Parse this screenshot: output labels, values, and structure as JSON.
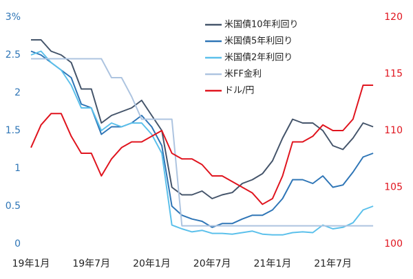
{
  "chart_data": {
    "type": "line",
    "x": [
      0,
      1,
      2,
      3,
      4,
      5,
      6,
      7,
      8,
      9,
      10,
      11,
      12,
      13,
      14,
      15,
      16,
      17,
      18,
      19,
      20,
      21,
      22,
      23,
      24,
      25,
      26,
      27,
      28,
      29,
      30,
      31,
      32,
      33,
      34
    ],
    "xlim": [
      0,
      34.2
    ],
    "xticks": [
      {
        "value": 0,
        "label": "19年1月"
      },
      {
        "value": 6,
        "label": "19年7月"
      },
      {
        "value": 12,
        "label": "20年1月"
      },
      {
        "value": 18,
        "label": "20年7月"
      },
      {
        "value": 24,
        "label": "21年1月"
      },
      {
        "value": 30,
        "label": "21年7月"
      }
    ],
    "ylim": [
      0,
      3
    ],
    "yticks": [
      0,
      0.5,
      1,
      1.5,
      2,
      2.5,
      {
        "value": 3,
        "label": "3%"
      }
    ],
    "y2lim": [
      100,
      120
    ],
    "y2ticks": [
      100,
      105,
      110,
      115,
      120
    ],
    "y_color": "#2e75b6",
    "y2_color": "#e0141e",
    "series": [
      {
        "name": "米国債10年利回り",
        "color": "#44546a",
        "values": [
          2.7,
          2.7,
          2.55,
          2.5,
          2.4,
          2.05,
          2.05,
          1.6,
          1.7,
          1.75,
          1.8,
          1.9,
          1.7,
          1.5,
          0.75,
          0.65,
          0.65,
          0.7,
          0.6,
          0.65,
          0.68,
          0.8,
          0.85,
          0.93,
          1.1,
          1.4,
          1.65,
          1.6,
          1.6,
          1.5,
          1.3,
          1.25,
          1.4,
          1.6,
          1.55
        ]
      },
      {
        "name": "米国債5年利回り",
        "color": "#2e75b6",
        "values": [
          2.55,
          2.5,
          2.4,
          2.3,
          2.2,
          1.85,
          1.8,
          1.45,
          1.55,
          1.55,
          1.6,
          1.7,
          1.55,
          1.3,
          0.5,
          0.38,
          0.33,
          0.3,
          0.22,
          0.27,
          0.27,
          0.33,
          0.38,
          0.38,
          0.45,
          0.6,
          0.85,
          0.85,
          0.8,
          0.9,
          0.75,
          0.78,
          0.95,
          1.15,
          1.2
        ]
      },
      {
        "name": "米国債2年利回り",
        "color": "#5bc0eb",
        "values": [
          2.5,
          2.55,
          2.4,
          2.3,
          2.1,
          1.8,
          1.8,
          1.5,
          1.6,
          1.55,
          1.6,
          1.6,
          1.45,
          1.2,
          0.25,
          0.2,
          0.16,
          0.18,
          0.14,
          0.14,
          0.13,
          0.15,
          0.17,
          0.13,
          0.12,
          0.12,
          0.15,
          0.16,
          0.15,
          0.25,
          0.2,
          0.22,
          0.28,
          0.45,
          0.5
        ]
      },
      {
        "name": "米FF金利",
        "color": "#adc4e0",
        "values": [
          2.45,
          2.45,
          2.45,
          2.45,
          2.45,
          2.45,
          2.45,
          2.45,
          2.2,
          2.2,
          1.95,
          1.65,
          1.65,
          1.65,
          1.65,
          0.24,
          0.24,
          0.24,
          0.24,
          0.24,
          0.24,
          0.24,
          0.24,
          0.24,
          0.24,
          0.24,
          0.24,
          0.24,
          0.24,
          0.24,
          0.24,
          0.24,
          0.24,
          0.24,
          0.24
        ]
      },
      {
        "name": "ドル/円",
        "color": "#e0141e",
        "axis": "y2",
        "values": [
          108.5,
          110.5,
          111.5,
          111.5,
          109.5,
          108,
          108,
          106,
          107.5,
          108.5,
          109,
          109,
          109.5,
          110,
          108,
          107.5,
          107.5,
          107,
          106,
          106,
          105.5,
          105,
          104.5,
          103.5,
          104,
          106,
          109,
          109,
          109.5,
          110.5,
          110,
          110,
          111,
          114,
          114
        ]
      }
    ]
  }
}
